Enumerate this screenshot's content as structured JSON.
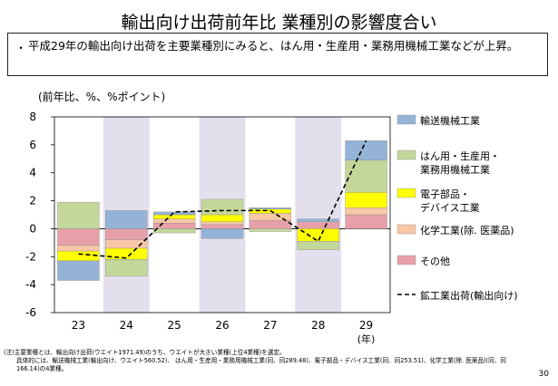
{
  "title": "輸出向け出荷前年比 業種別の影響度合い",
  "bullet": {
    "dot": "・",
    "text": "平成29年の輸出向け出荷を主要業種別にみると、はん用・生産用・業務用機械工業などが上昇。"
  },
  "unit_label": "(前年比、%、%ポイント)",
  "chart_data": {
    "type": "bar",
    "stacked": true,
    "categories": [
      "23",
      "24",
      "25",
      "26",
      "27",
      "28",
      "29"
    ],
    "x_unit": "(年)",
    "ylim": [
      -6,
      8
    ],
    "yticks": [
      "8",
      "6",
      "4",
      "2",
      "0",
      "-2",
      "-4",
      "-6"
    ],
    "shaded_categories": [
      "24",
      "26",
      "28"
    ],
    "series": [
      {
        "name": "その他",
        "color": "#e8a0a8",
        "values": [
          -1.2,
          -0.8,
          0.4,
          0.3,
          0.6,
          0.5,
          1.0
        ]
      },
      {
        "name": "化学工業(除. 医薬品)",
        "color": "#f7c7a6",
        "values": [
          -0.4,
          -0.6,
          0.3,
          0.2,
          0.5,
          0.0,
          0.5
        ]
      },
      {
        "name": "電子部品・デバイス工業",
        "color": "#ffff00",
        "values": [
          -0.7,
          -0.8,
          0.3,
          0.5,
          0.3,
          -0.9,
          1.1
        ]
      },
      {
        "name": "はん用・生産用・業務用機械工業",
        "color": "#c4d79b",
        "values": [
          1.9,
          -1.2,
          -0.3,
          1.1,
          -0.2,
          -0.6,
          2.3
        ]
      },
      {
        "name": "輸送機械工業",
        "color": "#95b3d7",
        "values": [
          -1.4,
          1.3,
          0.2,
          -0.7,
          0.1,
          0.2,
          1.4
        ]
      }
    ],
    "line": {
      "name": "鉱工業出荷(輸出向け)",
      "color": "#000000",
      "values": [
        -1.8,
        -2.1,
        1.2,
        1.3,
        1.3,
        -0.9,
        6.3
      ]
    },
    "legend": [
      {
        "label": "輸送機械工業",
        "color": "#95b3d7",
        "kind": "box"
      },
      {
        "label": "はん用・生産用・業務用機械工業",
        "color": "#c4d79b",
        "kind": "box"
      },
      {
        "label": "電子部品・デバイス工業",
        "color": "#ffff00",
        "kind": "box"
      },
      {
        "label": "化学工業(除. 医薬品)",
        "color": "#f7c7a6",
        "kind": "box"
      },
      {
        "label": "その他",
        "color": "#e8a0a8",
        "kind": "box"
      },
      {
        "label": "鉱工業出荷(輸出向け)",
        "color": "#000000",
        "kind": "line"
      }
    ],
    "legend_placement": "right"
  },
  "notes": {
    "line1": "(注)主要業種とは、輸出向け出荷(ウエイト1971.49)のうち、ウエイトが大きい業種(上位4業種)を選定。",
    "line2": "具体的には、輸送機械工業(輸出向け、ウエイト560.52)、 はん用・生産用・業務用機械工業(同、同289.48)、電子部品・デバイス工業(同、同253.51)、化学工業(除. 医薬品)(同、同",
    "line3": "166.14)の4業種。"
  },
  "page_number": "30"
}
